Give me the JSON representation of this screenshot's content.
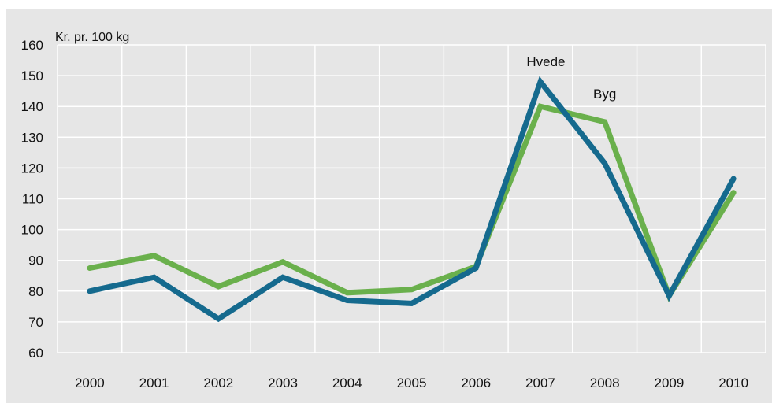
{
  "chart_data": {
    "type": "line",
    "ylabel": "Kr. pr. 100 kg",
    "xlabel": "",
    "title": "",
    "categories": [
      "2000",
      "2001",
      "2002",
      "2003",
      "2004",
      "2005",
      "2006",
      "2007",
      "2008",
      "2009",
      "2010"
    ],
    "ylim": [
      60,
      160
    ],
    "yticks": [
      60,
      70,
      80,
      90,
      100,
      110,
      120,
      130,
      140,
      150,
      160
    ],
    "grid": true,
    "series": [
      {
        "name": "Byg",
        "color": "#6ab04c",
        "values": [
          87.5,
          91.5,
          81.5,
          89.5,
          79.5,
          80.5,
          88,
          140,
          135,
          78.5,
          112
        ]
      },
      {
        "name": "Hvede",
        "color": "#156a8e",
        "values": [
          80,
          84.5,
          71,
          84.5,
          77,
          76,
          87.5,
          148,
          121.5,
          78.5,
          116.5
        ]
      }
    ],
    "annotations": [
      {
        "text": "Hvede",
        "series": "Hvede",
        "category": "2007"
      },
      {
        "text": "Byg",
        "series": "Byg",
        "category": "2008"
      }
    ],
    "colors": {
      "plot_background": "#e6e6e6",
      "gridline": "#ffffff"
    }
  }
}
